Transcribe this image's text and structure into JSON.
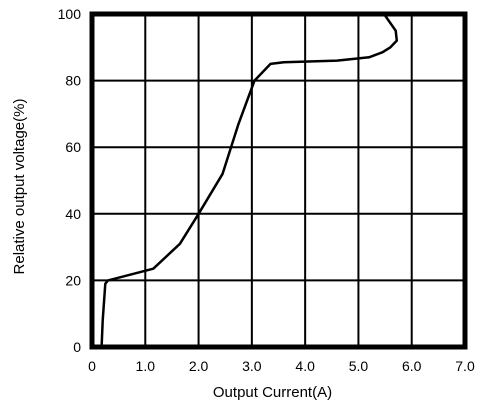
{
  "chart_data": {
    "type": "line",
    "title": "",
    "xlabel": "Output Current(A)",
    "ylabel": "Relative output voltage(%)",
    "xlim": [
      0,
      7
    ],
    "ylim": [
      0,
      100
    ],
    "x_ticks": [
      0,
      1,
      2,
      3,
      4,
      5,
      6,
      7
    ],
    "x_tick_labels": [
      "0",
      "1.0",
      "2.0",
      "3.0",
      "4.0",
      "5.0",
      "6.0",
      "7.0"
    ],
    "y_ticks": [
      0,
      20,
      40,
      60,
      80,
      100
    ],
    "y_tick_labels": [
      "0",
      "20",
      "40",
      "60",
      "80",
      "100"
    ],
    "grid": true,
    "legend": "none",
    "series": [
      {
        "x": [
          0.18,
          0.2,
          0.25,
          0.3,
          1.15,
          1.65,
          2.0,
          2.45,
          2.75,
          3.05,
          3.35,
          3.6,
          4.6,
          5.2,
          5.45,
          5.6,
          5.72,
          5.7,
          5.48
        ],
        "y": [
          0,
          8,
          19,
          20,
          23.5,
          31,
          40,
          52,
          67,
          80,
          85,
          85.5,
          86,
          87,
          88.5,
          90,
          92,
          95,
          100
        ]
      }
    ]
  }
}
